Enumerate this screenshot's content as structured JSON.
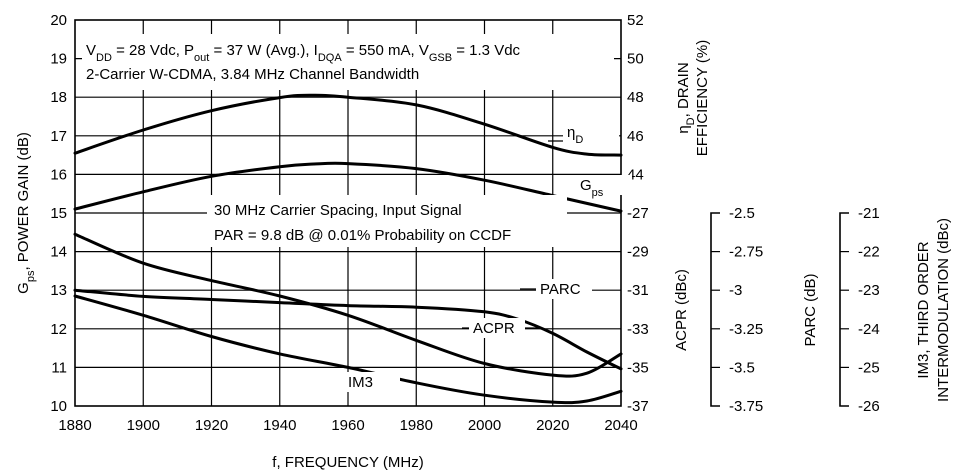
{
  "chart_data": {
    "type": "line",
    "x_axis": {
      "label": "f, FREQUENCY (MHz)",
      "range": [
        1880,
        2040
      ],
      "ticks": [
        1880,
        1900,
        1920,
        1940,
        1960,
        1980,
        2000,
        2020,
        2040
      ]
    },
    "left_axis": {
      "label_main": "G",
      "label_sub": "ps",
      "label_rest": ", POWER GAIN (dB)",
      "range": [
        10,
        20
      ],
      "ticks": [
        10,
        11,
        12,
        13,
        14,
        15,
        16,
        17,
        18,
        19,
        20
      ]
    },
    "right_axis_efficiency": {
      "label_line1_main": "η",
      "label_line1_sub": "D",
      "label_line1_rest": ", DRAIN",
      "label_line2": "EFFICIENCY (%)",
      "range": [
        44,
        52
      ],
      "ticks": [
        44,
        46,
        48,
        50,
        52
      ]
    },
    "right_axis_acpr": {
      "label": "ACPR (dBc)",
      "range": [
        -37,
        -27
      ],
      "ticks": [
        -27,
        -29,
        -31,
        -33,
        -35,
        -37
      ]
    },
    "parc_axis": {
      "label": "PARC (dB)",
      "range": [
        -3.75,
        -2.5
      ],
      "ticks": [
        "-2.5",
        "-2.75",
        "-3",
        "-3.25",
        "-3.5",
        "-3.75"
      ]
    },
    "im3_axis": {
      "label_line1": "IM3, THIRD ORDER",
      "label_line2": "INTERMODULATION (dBc)",
      "range": [
        -26,
        -21
      ],
      "ticks": [
        "-21",
        "-22",
        "-23",
        "-24",
        "-25",
        "-26"
      ]
    },
    "conditions": {
      "line1": [
        {
          "t": "V"
        },
        {
          "t": "DD",
          "sub": true
        },
        {
          "t": " = 28 Vdc, P"
        },
        {
          "t": "out",
          "sub": true
        },
        {
          "t": " = 37 W (Avg.), I"
        },
        {
          "t": "DQA",
          "sub": true
        },
        {
          "t": " = 550 mA, V"
        },
        {
          "t": "GSB",
          "sub": true
        },
        {
          "t": " = 1.3 Vdc"
        }
      ],
      "line2": "2-Carrier W-CDMA, 3.84 MHz Channel Bandwidth"
    },
    "signal_note": {
      "line1": "30 MHz Carrier Spacing, Input Signal",
      "line2": "PAR = 9.8 dB @ 0.01% Probability on CCDF"
    },
    "series": [
      {
        "name": "ηD",
        "label_main": "η",
        "label_sub": "D",
        "axis": "efficiency",
        "x": [
          1880,
          1900,
          1920,
          1940,
          1950,
          1960,
          1980,
          2000,
          2020,
          2030,
          2040
        ],
        "y": [
          45.1,
          46.3,
          47.3,
          47.98,
          48.1,
          48.0,
          47.6,
          46.6,
          45.4,
          45.05,
          45.0
        ]
      },
      {
        "name": "Gps",
        "label_main": "G",
        "label_sub": "ps",
        "axis": "gain",
        "x": [
          1880,
          1900,
          1920,
          1940,
          1950,
          1960,
          1980,
          2000,
          2020,
          2040
        ],
        "y": [
          15.1,
          15.55,
          15.95,
          16.2,
          16.27,
          16.28,
          16.15,
          15.85,
          15.45,
          15.05
        ]
      },
      {
        "name": "PARC",
        "label_main": "PARC",
        "axis": "parc",
        "x": [
          1880,
          1900,
          1920,
          1940,
          1960,
          1980,
          2000,
          2010,
          2020,
          2030,
          2040
        ],
        "y": [
          -3.0,
          -3.04,
          -3.06,
          -3.08,
          -3.1,
          -3.11,
          -3.14,
          -3.19,
          -3.28,
          -3.4,
          -3.51
        ]
      },
      {
        "name": "ACPR",
        "label_main": "ACPR",
        "axis": "acpr",
        "x": [
          1880,
          1900,
          1920,
          1940,
          1960,
          1980,
          2000,
          2020,
          2030,
          2040
        ],
        "y": [
          -28.1,
          -29.6,
          -30.5,
          -31.3,
          -32.3,
          -33.6,
          -34.8,
          -35.4,
          -35.3,
          -34.3
        ]
      },
      {
        "name": "IM3",
        "label_main": "IM3",
        "axis": "im3",
        "x": [
          1880,
          1900,
          1920,
          1940,
          1960,
          1980,
          2000,
          2020,
          2030,
          2040
        ],
        "y": [
          -23.15,
          -23.65,
          -24.2,
          -24.65,
          -25.0,
          -25.4,
          -25.72,
          -25.9,
          -25.87,
          -25.62
        ]
      }
    ]
  }
}
